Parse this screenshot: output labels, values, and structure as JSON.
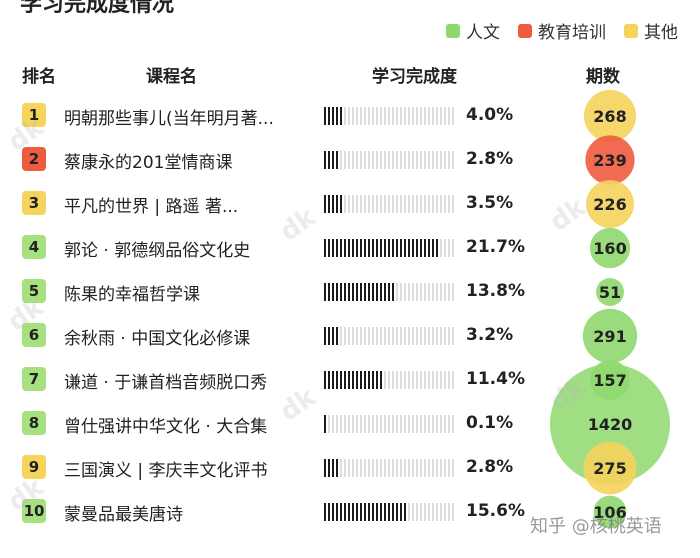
{
  "legend": [
    {
      "label": "人文",
      "color": "#8fd86f"
    },
    {
      "label": "教育培训",
      "color": "#ef5b3f"
    },
    {
      "label": "其他",
      "color": "#f5d35c"
    }
  ],
  "headers": {
    "rank": "排名",
    "course": "课程名",
    "progress": "学习完成度",
    "episodes": "期数"
  },
  "chart_data": {
    "type": "table",
    "columns": [
      "排名",
      "课程名",
      "学习完成度",
      "期数"
    ],
    "rows": [
      {
        "rank": "1",
        "course": "明朝那些事儿(当年明月著...",
        "progress": 4.0,
        "progress_label": "4.0%",
        "episodes": 268,
        "category": "其他"
      },
      {
        "rank": "2",
        "course": "蔡康永的201堂情商课",
        "progress": 2.8,
        "progress_label": "2.8%",
        "episodes": 239,
        "category": "教育培训"
      },
      {
        "rank": "3",
        "course": "平凡的世界 | 路遥 著...",
        "progress": 3.5,
        "progress_label": "3.5%",
        "episodes": 226,
        "category": "其他"
      },
      {
        "rank": "4",
        "course": "郭论 · 郭德纲品俗文化史",
        "progress": 21.7,
        "progress_label": "21.7%",
        "episodes": 160,
        "category": "人文"
      },
      {
        "rank": "5",
        "course": "陈果的幸福哲学课",
        "progress": 13.8,
        "progress_label": "13.8%",
        "episodes": 51,
        "category": "人文"
      },
      {
        "rank": "6",
        "course": "余秋雨 · 中国文化必修课",
        "progress": 3.2,
        "progress_label": "3.2%",
        "episodes": 291,
        "category": "人文"
      },
      {
        "rank": "7",
        "course": "谦道 · 于谦首档音频脱口秀",
        "progress": 11.4,
        "progress_label": "11.4%",
        "episodes": 157,
        "category": "人文"
      },
      {
        "rank": "8",
        "course": "曾仕强讲中华文化 · 大合集",
        "progress": 0.1,
        "progress_label": "0.1%",
        "episodes": 1420,
        "category": "人文"
      },
      {
        "rank": "9",
        "course": "三国演义 | 李庆丰文化评书",
        "progress": 2.8,
        "progress_label": "2.8%",
        "episodes": 275,
        "category": "其他"
      },
      {
        "rank": "10",
        "course": "蒙曼品最美唐诗",
        "progress": 15.6,
        "progress_label": "15.6%",
        "episodes": 106,
        "category": "人文"
      }
    ]
  },
  "footer_watermark": "知乎 @核桃英语"
}
